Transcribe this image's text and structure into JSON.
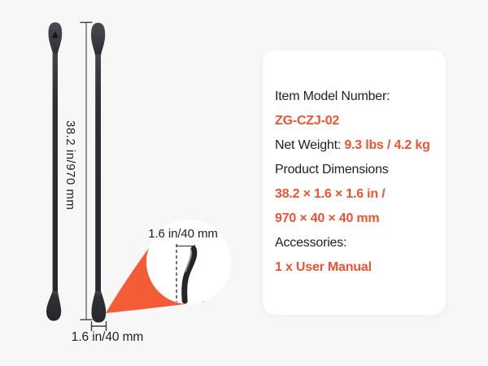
{
  "colors": {
    "accent": "#ed5433",
    "beam": "#f25c36",
    "background": "#f7f7f8",
    "card": "#ffffff",
    "lever_dark": "#2a2a2e",
    "text_dark": "#212123"
  },
  "diagram": {
    "height_label": "38.2 in/970 mm",
    "tip_width_label": "1.6 in/40 mm",
    "callout_label": "1.6 in/40 mm"
  },
  "spec_card": {
    "rows": [
      [
        {
          "text": "Item Model Number:",
          "accent": false
        }
      ],
      [
        {
          "text": "ZG-CZJ-02",
          "accent": true
        }
      ],
      [
        {
          "text": "Net Weight: ",
          "accent": false
        },
        {
          "text": "9.3 lbs / 4.2 kg",
          "accent": true
        }
      ],
      [
        {
          "text": "Product Dimensions",
          "accent": false
        }
      ],
      [
        {
          "text": "38.2 × 1.6 × 1.6 in /",
          "accent": true
        }
      ],
      [
        {
          "text": "970 × 40 × 40 mm",
          "accent": true
        }
      ],
      [
        {
          "text": "Accessories:",
          "accent": false
        }
      ],
      [
        {
          "text": "1 x User Manual",
          "accent": true
        }
      ]
    ]
  }
}
